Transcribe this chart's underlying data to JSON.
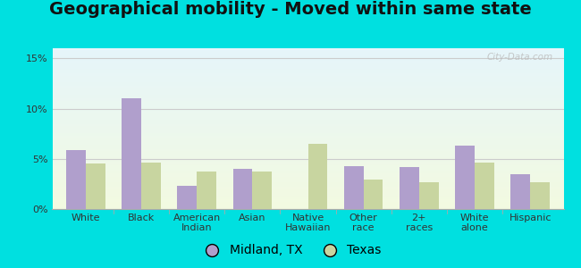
{
  "title": "Geographical mobility - Moved within same state",
  "categories": [
    "White",
    "Black",
    "American\nIndian",
    "Asian",
    "Native\nHawaiian",
    "Other\nrace",
    "2+\nraces",
    "White\nalone",
    "Hispanic"
  ],
  "midland_values": [
    5.9,
    11.0,
    2.3,
    4.0,
    0.0,
    4.3,
    4.2,
    6.3,
    3.5
  ],
  "texas_values": [
    4.5,
    4.6,
    3.7,
    3.7,
    6.5,
    2.9,
    2.7,
    4.6,
    2.7
  ],
  "midland_color": "#b09fcc",
  "texas_color": "#c8d5a0",
  "outer_bg": "#00e0e0",
  "ylim_max": 16,
  "yticks": [
    0,
    5,
    10,
    15
  ],
  "ytick_labels": [
    "0%",
    "5%",
    "10%",
    "15%"
  ],
  "legend_midland": "Midland, TX",
  "legend_texas": "Texas",
  "bar_width": 0.35,
  "title_fontsize": 14,
  "tick_fontsize": 8,
  "legend_fontsize": 10
}
